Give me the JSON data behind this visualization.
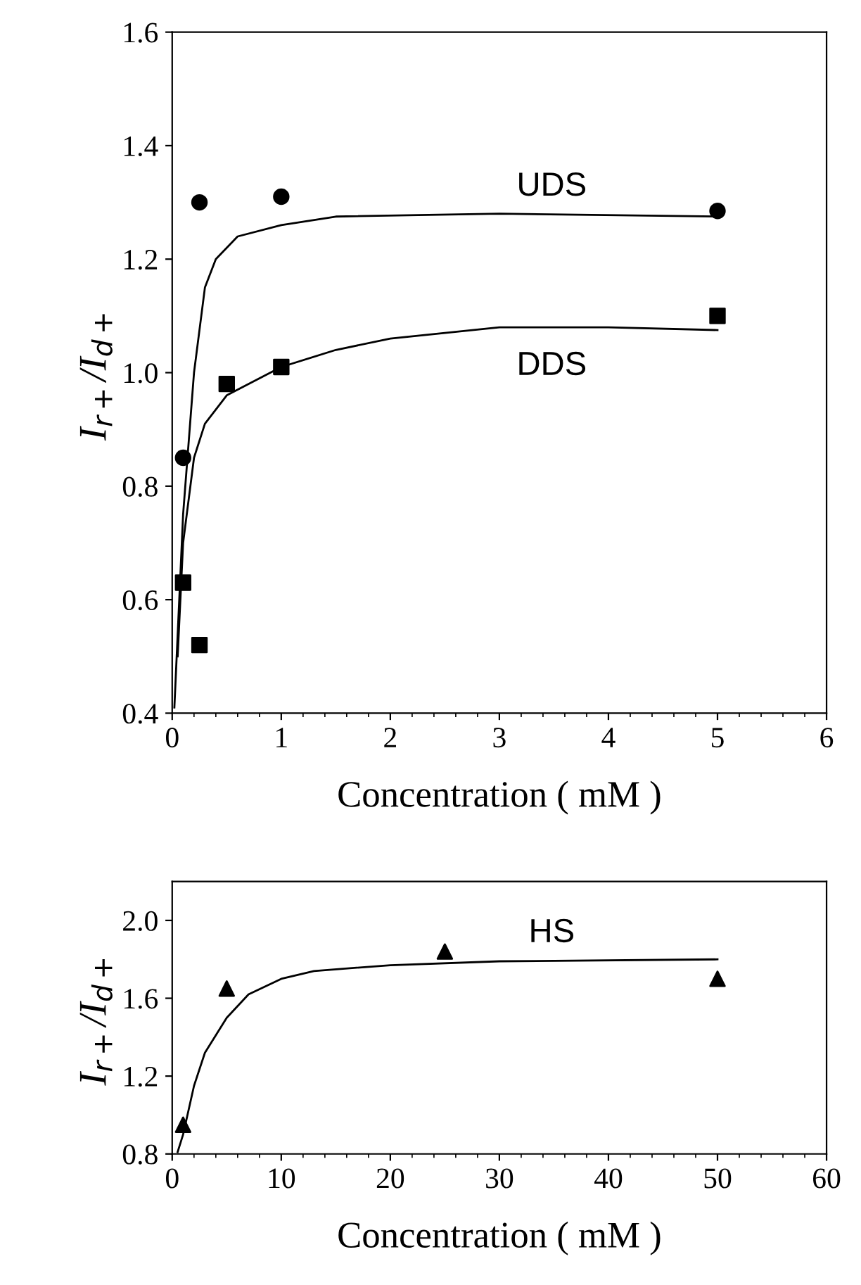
{
  "chart_data": [
    {
      "type": "scatter",
      "xlabel": "Concentration ( mM )",
      "ylabel": "I$_{r+}$/I$_{d+}$",
      "xlim": [
        0,
        6
      ],
      "xticks": [
        0,
        1,
        2,
        3,
        4,
        5,
        6
      ],
      "ylim": [
        0.4,
        1.6
      ],
      "yticks": [
        0.4,
        0.6,
        0.8,
        {
          "value": 1.0,
          "label": "1.0"
        },
        1.2,
        1.4,
        1.6
      ],
      "legend": false,
      "grid": false,
      "series": [
        {
          "marker": "circle",
          "color": "#000000",
          "x": [
            0.1,
            0.25,
            1,
            5
          ],
          "values": [
            0.85,
            1.3,
            1.31,
            1.285
          ]
        },
        {
          "name": "UDS",
          "type": "line",
          "line_style": "solid",
          "color": "#000000",
          "x": [
            0.02,
            0.1,
            0.2,
            0.3,
            0.4,
            0.6,
            1,
            1.5,
            3,
            5
          ],
          "values": [
            0.41,
            0.75,
            1.0,
            1.15,
            1.2,
            1.24,
            1.26,
            1.275,
            1.28,
            1.275
          ]
        },
        {
          "marker": "square",
          "color": "#000000",
          "x": [
            0.1,
            0.25,
            0.5,
            1,
            5
          ],
          "values": [
            0.63,
            0.52,
            0.98,
            1.01,
            1.1
          ]
        },
        {
          "name": "DDS",
          "type": "line",
          "line_style": "solid",
          "color": "#000000",
          "x": [
            0.05,
            0.1,
            0.2,
            0.3,
            0.5,
            1,
            1.5,
            2,
            3,
            4,
            5
          ],
          "values": [
            0.5,
            0.7,
            0.85,
            0.91,
            0.96,
            1.01,
            1.04,
            1.06,
            1.08,
            1.08,
            1.075
          ]
        }
      ]
    },
    {
      "type": "scatter",
      "xlabel": "Concentration ( mM )",
      "ylabel": "I$_{r+}$/I$_{d+}$",
      "xlim": [
        0,
        60
      ],
      "xticks": [
        0,
        10,
        20,
        30,
        40,
        50,
        60
      ],
      "ylim": [
        0.8,
        2.2
      ],
      "yticks": [
        0.8,
        1.2,
        1.6,
        {
          "value": 2.0,
          "label": "2.0"
        }
      ],
      "legend": false,
      "grid": false,
      "series": [
        {
          "marker": "triangle",
          "color": "#000000",
          "x": [
            1,
            5,
            25,
            50
          ],
          "values": [
            0.95,
            1.65,
            1.84,
            1.7
          ]
        },
        {
          "name": "HS",
          "type": "line",
          "line_style": "solid",
          "color": "#000000",
          "x": [
            0.5,
            1,
            2,
            3,
            5,
            7,
            10,
            13,
            20,
            30,
            50
          ],
          "values": [
            0.81,
            0.9,
            1.15,
            1.32,
            1.5,
            1.62,
            1.7,
            1.74,
            1.77,
            1.79,
            1.8
          ]
        }
      ]
    }
  ]
}
